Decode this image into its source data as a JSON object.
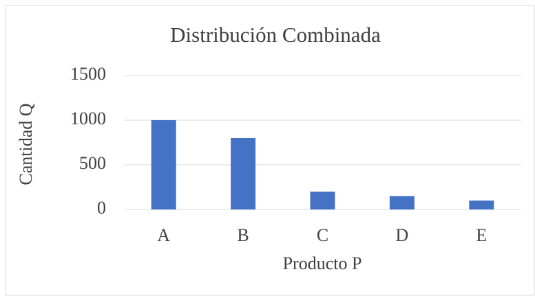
{
  "chart_data": {
    "type": "bar",
    "title": "Distribución Combinada",
    "x_label": "Producto P",
    "y_label": "Cantidad Q",
    "categories": [
      "A",
      "B",
      "C",
      "D",
      "E"
    ],
    "values": [
      1000,
      800,
      200,
      150,
      100
    ],
    "color": "#4472c4",
    "ylim": [
      0,
      1500
    ],
    "yticks": [
      0,
      500,
      1000,
      1500
    ],
    "grid": true
  }
}
